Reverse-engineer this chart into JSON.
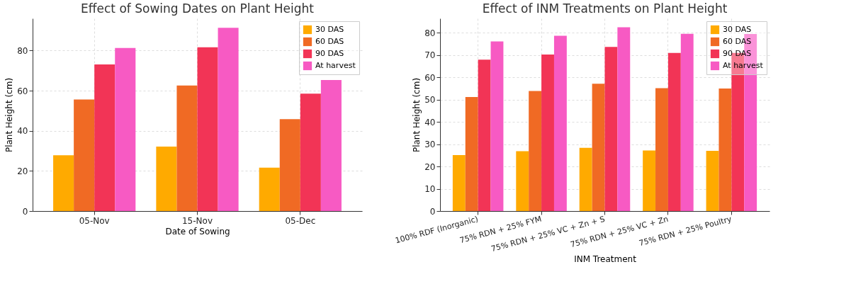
{
  "chart_data": [
    {
      "type": "bar",
      "title": "Effect of Sowing Dates on Plant Height",
      "xlabel": "Date of Sowing",
      "ylabel": "Plant Height (cm)",
      "categories": [
        "05-Nov",
        "15-Nov",
        "05-Dec"
      ],
      "series": [
        {
          "name": "30 DAS",
          "color": "#ffaa00",
          "values": [
            27.8,
            32.1,
            21.6
          ]
        },
        {
          "name": "60 DAS",
          "color": "#f06a24",
          "values": [
            55.6,
            62.6,
            45.8
          ]
        },
        {
          "name": "90 DAS",
          "color": "#f23456",
          "values": [
            73.1,
            81.6,
            58.5
          ]
        },
        {
          "name": "At harvest",
          "color": "#f75ac3",
          "values": [
            81.3,
            91.3,
            65.3
          ]
        }
      ],
      "ylim": [
        0,
        96
      ],
      "yticks": [
        0,
        20,
        40,
        60,
        80
      ],
      "grid": true,
      "legend": "top right"
    },
    {
      "type": "bar",
      "title": "Effect of INM Treatments on Plant Height",
      "xlabel": "INM Treatment",
      "ylabel": "Plant Height (cm)",
      "categories": [
        "100% RDF (Inorganic)",
        "75% RDN + 25% FYM",
        "75% RDN + 25% VC + Zn + S",
        "75% RDN + 25% VC + Zn",
        "75% RDN + 25% Poultry"
      ],
      "series": [
        {
          "name": "30 DAS",
          "color": "#ffaa00",
          "values": [
            25.1,
            26.9,
            28.4,
            27.2,
            27.0
          ]
        },
        {
          "name": "60 DAS",
          "color": "#f06a24",
          "values": [
            51.2,
            53.9,
            57.2,
            55.2,
            55.0
          ]
        },
        {
          "name": "90 DAS",
          "color": "#f23456",
          "values": [
            68.0,
            70.3,
            73.7,
            71.0,
            71.0
          ]
        },
        {
          "name": "At harvest",
          "color": "#f75ac3",
          "values": [
            76.2,
            78.7,
            82.5,
            79.6,
            79.5
          ]
        }
      ],
      "ylim": [
        0,
        86.5
      ],
      "yticks": [
        0,
        10,
        20,
        30,
        40,
        50,
        60,
        70,
        80
      ],
      "grid": true,
      "legend": "top right"
    }
  ]
}
